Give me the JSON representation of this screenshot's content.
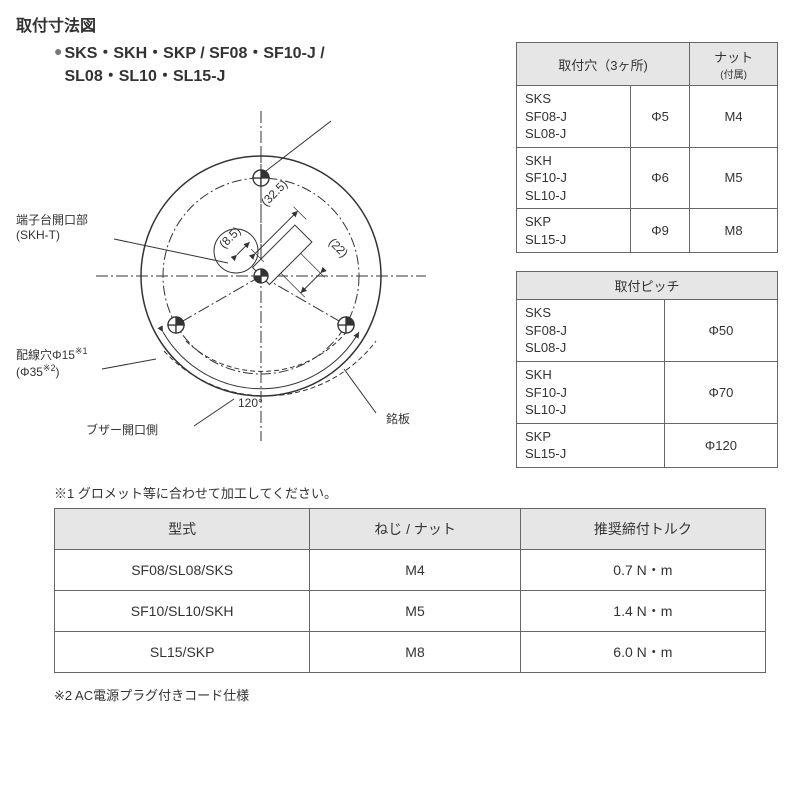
{
  "title_main": "取付寸法図",
  "product_header_line1": "SKS・SKH・SKP / SF08・SF10-J /",
  "product_header_line2": "SL08・SL10・SL15-J",
  "diagram": {
    "label_terminal": "端子台開口部\n(SKH-T)",
    "label_wirehole": "配線穴Φ15",
    "label_wirehole_sup1": "※1",
    "label_wirehole_phi35": "(Φ35",
    "label_wirehole_sup2": "※2",
    "label_wirehole_close": ")",
    "label_buzzer": "ブザー開口側",
    "label_nameplate": "銘板",
    "dim_32_5": "(32.5)",
    "dim_8_5": "(8.5)",
    "dim_22": "(22)",
    "angle_120": "120°",
    "circle_r": 120,
    "stroke": "#333333",
    "thin_stroke_w": 1,
    "dash": "4 3"
  },
  "holes_table": {
    "header_holes": "取付穴（3ヶ所)",
    "header_nut_line1": "ナット",
    "header_nut_line2": "(付属)",
    "rows": [
      {
        "models": "SKS\nSF08-J\nSL08-J",
        "hole": "Φ5",
        "nut": "M4"
      },
      {
        "models": "SKH\nSF10-J\nSL10-J",
        "hole": "Φ6",
        "nut": "M5"
      },
      {
        "models": "SKP\nSL15-J",
        "hole": "Φ9",
        "nut": "M8"
      }
    ]
  },
  "pitch_table": {
    "header": "取付ピッチ",
    "rows": [
      {
        "models": "SKS\nSF08-J\nSL08-J",
        "pitch": "Φ50"
      },
      {
        "models": "SKH\nSF10-J\nSL10-J",
        "pitch": "Φ70"
      },
      {
        "models": "SKP\nSL15-J",
        "pitch": "Φ120"
      }
    ]
  },
  "footnote1": "※1 グロメット等に合わせて加工してください。",
  "torque_table": {
    "headers": [
      "型式",
      "ねじ / ナット",
      "推奨締付トルク"
    ],
    "rows": [
      [
        "SF08/SL08/SKS",
        "M4",
        "0.7 N・m"
      ],
      [
        "SF10/SL10/SKH",
        "M5",
        "1.4 N・m"
      ],
      [
        "SL15/SKP",
        "M8",
        "6.0 N・m"
      ]
    ]
  },
  "footnote2": "※2 AC電源プラグ付きコード仕様"
}
